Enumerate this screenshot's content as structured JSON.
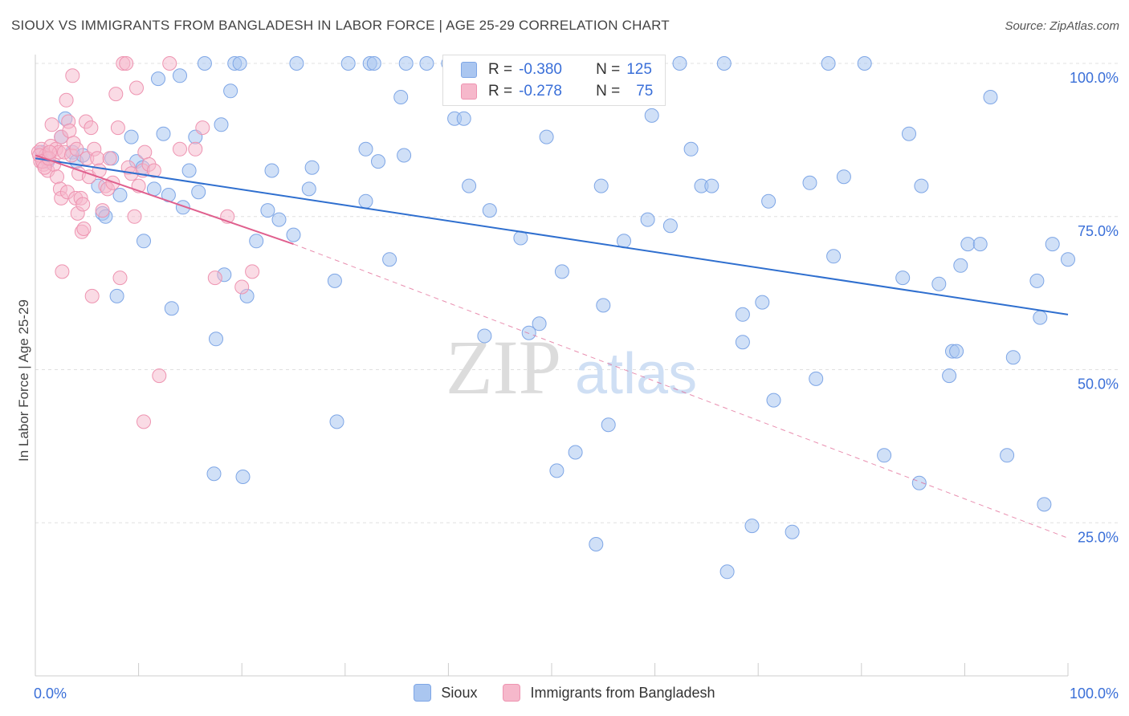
{
  "title": "SIOUX VS IMMIGRANTS FROM BANGLADESH IN LABOR FORCE | AGE 25-29 CORRELATION CHART",
  "source": "Source: ZipAtlas.com",
  "watermark": {
    "zip": "ZIP",
    "atlas": "atlas"
  },
  "colors": {
    "sioux_fill": "#aac6f0",
    "sioux_stroke": "#7ea6e6",
    "sioux_line": "#2f6fcf",
    "bangladesh_fill": "#f6b8cb",
    "bangladesh_stroke": "#ee94b1",
    "bangladesh_line": "#e0608e",
    "tick_text": "#3a6fd8",
    "grid": "#e0e0e0"
  },
  "legend": {
    "r_label": "R =",
    "n_label": "N =",
    "rows": [
      {
        "series": "Sioux",
        "r": "-0.380",
        "n": "125"
      },
      {
        "series": "Immigrants from Bangladesh",
        "r": "-0.278",
        "n": "75"
      }
    ]
  },
  "bottom_legend": [
    "Sioux",
    "Immigrants from Bangladesh"
  ],
  "chart_data": {
    "type": "scatter",
    "title": "SIOUX VS IMMIGRANTS FROM BANGLADESH IN LABOR FORCE | AGE 25-29 CORRELATION CHART",
    "xlabel": "",
    "ylabel": "In Labor Force | Age 25-29",
    "xlim": [
      0,
      100
    ],
    "ylim": [
      0,
      102
    ],
    "x_tick_labels": [
      "0.0%",
      "100.0%"
    ],
    "y_ticks": [
      25,
      50,
      75,
      100
    ],
    "y_tick_labels": [
      "25.0%",
      "50.0%",
      "75.0%",
      "100.0%"
    ],
    "grid": true,
    "legend_position": "top-center",
    "series": [
      {
        "name": "Sioux",
        "trend": {
          "x": [
            0,
            100
          ],
          "y": [
            84.5,
            59.0
          ]
        },
        "points": [
          [
            0.6,
            85.5
          ],
          [
            1.2,
            84.0
          ],
          [
            2.5,
            88.0
          ],
          [
            2.9,
            91.0
          ],
          [
            3.6,
            85.5
          ],
          [
            4.0,
            84.0
          ],
          [
            4.6,
            85.0
          ],
          [
            6.1,
            80.0
          ],
          [
            6.5,
            75.5
          ],
          [
            6.8,
            75.0
          ],
          [
            7.4,
            84.5
          ],
          [
            7.9,
            62.0
          ],
          [
            8.2,
            78.5
          ],
          [
            9.3,
            88.0
          ],
          [
            9.8,
            84.0
          ],
          [
            10.4,
            83.0
          ],
          [
            10.5,
            71.0
          ],
          [
            11.5,
            79.5
          ],
          [
            11.9,
            97.5
          ],
          [
            12.4,
            88.5
          ],
          [
            12.9,
            78.5
          ],
          [
            13.2,
            60.0
          ],
          [
            14.0,
            98.0
          ],
          [
            14.3,
            76.5
          ],
          [
            14.9,
            82.5
          ],
          [
            15.5,
            88.0
          ],
          [
            15.8,
            79.0
          ],
          [
            16.4,
            100.0
          ],
          [
            17.3,
            33.0
          ],
          [
            17.5,
            55.0
          ],
          [
            18.0,
            90.0
          ],
          [
            18.3,
            65.5
          ],
          [
            18.9,
            95.5
          ],
          [
            19.3,
            100.0
          ],
          [
            19.8,
            100.0
          ],
          [
            20.1,
            32.5
          ],
          [
            20.5,
            62.0
          ],
          [
            21.4,
            71.0
          ],
          [
            22.5,
            76.0
          ],
          [
            22.9,
            82.5
          ],
          [
            23.6,
            74.5
          ],
          [
            25.0,
            72.0
          ],
          [
            25.3,
            100.0
          ],
          [
            26.5,
            79.5
          ],
          [
            26.8,
            83.0
          ],
          [
            29.0,
            64.5
          ],
          [
            29.2,
            41.5
          ],
          [
            30.3,
            100.0
          ],
          [
            32.0,
            86.0
          ],
          [
            32.4,
            100.0
          ],
          [
            32.8,
            100.0
          ],
          [
            32.0,
            77.5
          ],
          [
            33.2,
            84.0
          ],
          [
            34.3,
            68.0
          ],
          [
            35.4,
            94.5
          ],
          [
            35.7,
            85.0
          ],
          [
            35.9,
            100.0
          ],
          [
            37.9,
            100.0
          ],
          [
            40.0,
            100.0
          ],
          [
            40.6,
            91.0
          ],
          [
            41.5,
            91.0
          ],
          [
            42.0,
            80.0
          ],
          [
            43.5,
            55.5
          ],
          [
            44.0,
            76.0
          ],
          [
            47.0,
            71.5
          ],
          [
            47.8,
            56.0
          ],
          [
            48.8,
            57.5
          ],
          [
            49.5,
            88.0
          ],
          [
            50.5,
            33.5
          ],
          [
            51.0,
            66.0
          ],
          [
            52.3,
            36.5
          ],
          [
            54.8,
            80.0
          ],
          [
            55.0,
            60.5
          ],
          [
            55.5,
            41.0
          ],
          [
            54.3,
            21.5
          ],
          [
            57.0,
            71.0
          ],
          [
            59.3,
            74.5
          ],
          [
            59.7,
            91.5
          ],
          [
            61.5,
            73.5
          ],
          [
            62.4,
            100.0
          ],
          [
            63.5,
            86.0
          ],
          [
            64.5,
            80.0
          ],
          [
            65.5,
            80.0
          ],
          [
            66.7,
            100.0
          ],
          [
            67.0,
            17.0
          ],
          [
            68.5,
            59.0
          ],
          [
            68.5,
            54.5
          ],
          [
            69.4,
            24.5
          ],
          [
            70.4,
            61.0
          ],
          [
            71.0,
            77.5
          ],
          [
            71.5,
            45.0
          ],
          [
            73.3,
            23.5
          ],
          [
            75.0,
            80.5
          ],
          [
            75.6,
            48.5
          ],
          [
            76.8,
            100.0
          ],
          [
            77.3,
            68.5
          ],
          [
            78.3,
            81.5
          ],
          [
            80.3,
            100.0
          ],
          [
            82.2,
            36.0
          ],
          [
            84.0,
            65.0
          ],
          [
            84.6,
            88.5
          ],
          [
            85.6,
            31.5
          ],
          [
            85.8,
            80.0
          ],
          [
            87.5,
            64.0
          ],
          [
            88.5,
            49.0
          ],
          [
            88.8,
            53.0
          ],
          [
            89.2,
            53.0
          ],
          [
            89.6,
            67.0
          ],
          [
            90.3,
            70.5
          ],
          [
            91.5,
            70.5
          ],
          [
            92.5,
            94.5
          ],
          [
            94.1,
            36.0
          ],
          [
            94.7,
            52.0
          ],
          [
            97.0,
            64.5
          ],
          [
            97.3,
            58.5
          ],
          [
            97.7,
            28.0
          ],
          [
            98.5,
            70.5
          ],
          [
            100.0,
            68.0
          ]
        ]
      },
      {
        "name": "Immigrants from Bangladesh",
        "trend": {
          "x": [
            0,
            25.0
          ],
          "y": [
            85.0,
            70.5
          ]
        },
        "trend_dashed": {
          "x": [
            25.0,
            100.0
          ],
          "y": [
            70.5,
            22.5
          ]
        },
        "points": [
          [
            0.3,
            85.5
          ],
          [
            0.5,
            84.0
          ],
          [
            0.6,
            86.0
          ],
          [
            0.8,
            83.5
          ],
          [
            1.0,
            85.0
          ],
          [
            1.1,
            84.5
          ],
          [
            1.2,
            82.5
          ],
          [
            1.5,
            86.5
          ],
          [
            1.6,
            90.0
          ],
          [
            1.8,
            83.5
          ],
          [
            2.0,
            86.0
          ],
          [
            2.1,
            81.5
          ],
          [
            2.3,
            85.5
          ],
          [
            2.4,
            79.5
          ],
          [
            2.5,
            78.0
          ],
          [
            2.5,
            88.0
          ],
          [
            2.6,
            66.0
          ],
          [
            2.8,
            85.5
          ],
          [
            3.0,
            94.0
          ],
          [
            3.1,
            79.0
          ],
          [
            3.2,
            90.5
          ],
          [
            3.3,
            89.0
          ],
          [
            3.5,
            85.0
          ],
          [
            3.6,
            98.0
          ],
          [
            3.7,
            87.0
          ],
          [
            3.9,
            78.0
          ],
          [
            4.0,
            86.0
          ],
          [
            4.1,
            75.5
          ],
          [
            4.2,
            82.0
          ],
          [
            4.4,
            78.0
          ],
          [
            4.5,
            72.5
          ],
          [
            4.6,
            77.0
          ],
          [
            4.7,
            73.0
          ],
          [
            4.9,
            90.5
          ],
          [
            5.0,
            84.5
          ],
          [
            5.2,
            81.5
          ],
          [
            5.4,
            89.5
          ],
          [
            5.5,
            62.0
          ],
          [
            5.7,
            86.0
          ],
          [
            6.0,
            84.5
          ],
          [
            6.2,
            82.5
          ],
          [
            6.5,
            76.0
          ],
          [
            6.8,
            80.0
          ],
          [
            7.0,
            79.5
          ],
          [
            7.2,
            84.5
          ],
          [
            7.5,
            80.5
          ],
          [
            7.8,
            95.0
          ],
          [
            8.0,
            89.5
          ],
          [
            8.2,
            65.0
          ],
          [
            8.5,
            100.0
          ],
          [
            8.8,
            100.0
          ],
          [
            9.0,
            83.0
          ],
          [
            9.3,
            82.0
          ],
          [
            9.6,
            75.0
          ],
          [
            9.8,
            96.0
          ],
          [
            10.0,
            80.0
          ],
          [
            10.4,
            82.5
          ],
          [
            10.6,
            85.5
          ],
          [
            11.0,
            83.5
          ],
          [
            11.5,
            82.5
          ],
          [
            12.0,
            49.0
          ],
          [
            10.5,
            41.5
          ],
          [
            13.0,
            100.0
          ],
          [
            14.0,
            86.0
          ],
          [
            15.5,
            86.0
          ],
          [
            16.2,
            89.5
          ],
          [
            17.4,
            65.0
          ],
          [
            18.6,
            75.0
          ],
          [
            20.0,
            63.5
          ],
          [
            21.0,
            66.0
          ],
          [
            0.4,
            85.0
          ],
          [
            0.7,
            84.0
          ],
          [
            0.9,
            83.0
          ],
          [
            1.3,
            84.5
          ],
          [
            1.4,
            85.5
          ]
        ]
      }
    ]
  }
}
